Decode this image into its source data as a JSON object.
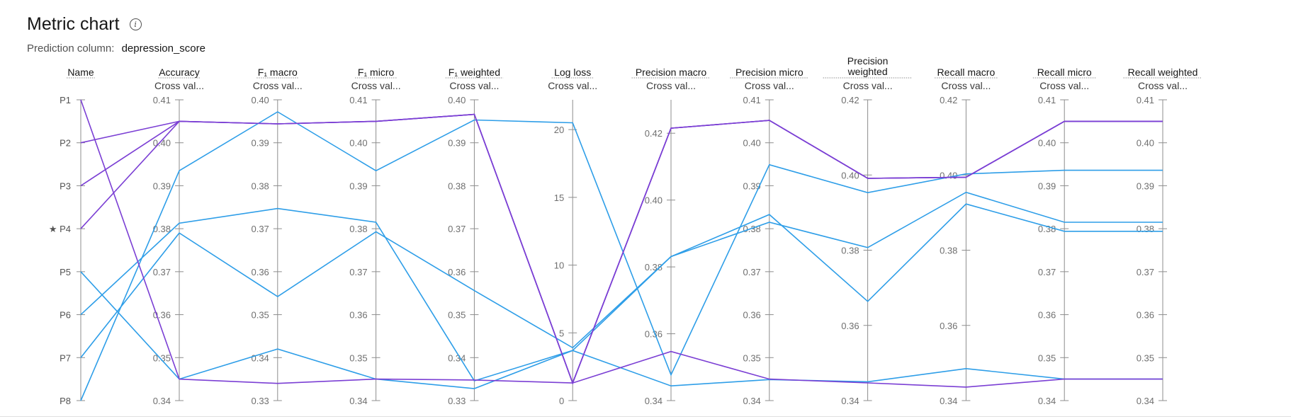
{
  "header": {
    "title": "Metric chart",
    "info_icon": "info-icon",
    "prediction_label": "Prediction column:",
    "prediction_value": "depression_score"
  },
  "colors": {
    "blue": "#2e9ee8",
    "purple": "#7b3fd4",
    "axis": "#8d8d8d",
    "label": "#525252"
  },
  "chart_data": {
    "type": "parallel_coordinates",
    "pipelines": [
      "P1",
      "P2",
      "P3",
      "P4",
      "P5",
      "P6",
      "P7",
      "P8"
    ],
    "starred": "P4",
    "name_axis_label": "Name",
    "axes": [
      {
        "key": "accuracy",
        "label": "Accuracy",
        "sub": "Cross val...",
        "min": 0.34,
        "max": 0.41,
        "ticks": [
          "0.41",
          "0.40",
          "0.39",
          "0.38",
          "0.37",
          "0.36",
          "0.35",
          "0.34"
        ]
      },
      {
        "key": "f1_macro",
        "label": "F₁ macro",
        "sub": "Cross val...",
        "min": 0.33,
        "max": 0.4,
        "ticks": [
          "0.40",
          "0.39",
          "0.38",
          "0.37",
          "0.36",
          "0.35",
          "0.34",
          "0.33"
        ]
      },
      {
        "key": "f1_micro",
        "label": "F₁ micro",
        "sub": "Cross val...",
        "min": 0.34,
        "max": 0.41,
        "ticks": [
          "0.41",
          "0.40",
          "0.39",
          "0.38",
          "0.37",
          "0.36",
          "0.35",
          "0.34"
        ]
      },
      {
        "key": "f1_weighted",
        "label": "F₁ weighted",
        "sub": "Cross val...",
        "min": 0.33,
        "max": 0.4,
        "ticks": [
          "0.40",
          "0.39",
          "0.38",
          "0.37",
          "0.36",
          "0.35",
          "0.34",
          "0.33"
        ]
      },
      {
        "key": "log_loss",
        "label": "Log loss",
        "sub": "Cross val...",
        "min": 0,
        "max": 22.2,
        "ticks": [
          "20",
          "15",
          "10",
          "5",
          "0"
        ]
      },
      {
        "key": "precision_macro",
        "label": "Precision macro",
        "sub": "Cross val...",
        "min": 0.34,
        "max": 0.43,
        "ticks": [
          "0.42",
          "0.40",
          "0.38",
          "0.36",
          "0.34"
        ]
      },
      {
        "key": "precision_micro",
        "label": "Precision micro",
        "sub": "Cross val...",
        "min": 0.34,
        "max": 0.41,
        "ticks": [
          "0.41",
          "0.40",
          "0.39",
          "0.38",
          "0.37",
          "0.36",
          "0.35",
          "0.34"
        ]
      },
      {
        "key": "precision_weighted",
        "label": "Precision weighted",
        "label_lines": [
          "Precision",
          "weighted"
        ],
        "sub": "Cross val...",
        "min": 0.34,
        "max": 0.42,
        "ticks": [
          "0.42",
          "0.40",
          "0.38",
          "0.36",
          "0.34"
        ]
      },
      {
        "key": "recall_macro",
        "label": "Recall macro",
        "sub": "Cross val...",
        "min": 0.34,
        "max": 0.42,
        "ticks": [
          "0.42",
          "0.40",
          "0.38",
          "0.36",
          "0.34"
        ]
      },
      {
        "key": "recall_micro",
        "label": "Recall micro",
        "sub": "Cross val...",
        "min": 0.34,
        "max": 0.41,
        "ticks": [
          "0.41",
          "0.40",
          "0.39",
          "0.38",
          "0.37",
          "0.36",
          "0.35",
          "0.34"
        ]
      },
      {
        "key": "recall_weighted",
        "label": "Recall weighted",
        "sub": "Cross val...",
        "min": 0.34,
        "max": 0.41,
        "ticks": [
          "0.41",
          "0.40",
          "0.39",
          "0.38",
          "0.37",
          "0.36",
          "0.35",
          "0.34"
        ]
      }
    ],
    "lines": [
      {
        "pipeline": "P1",
        "color": "purple",
        "values": [
          0.345,
          0.334,
          0.345,
          0.3348,
          1.3,
          0.3547,
          0.345,
          0.3447,
          0.3436,
          0.345,
          0.345
        ]
      },
      {
        "pipeline": "P2",
        "color": "purple",
        "values": [
          0.405,
          0.3944,
          0.405,
          0.3966,
          1.3,
          0.4215,
          0.4052,
          0.3991,
          0.3994,
          0.405,
          0.405
        ]
      },
      {
        "pipeline": "P3",
        "color": "purple",
        "values": [
          0.405,
          0.3944,
          0.405,
          0.3966,
          1.3,
          0.4215,
          0.4052,
          0.3991,
          0.3994,
          0.405,
          0.405
        ]
      },
      {
        "pipeline": "P4",
        "color": "purple",
        "values": [
          0.405,
          0.3944,
          0.405,
          0.3966,
          1.3,
          0.4215,
          0.4052,
          0.3991,
          0.3994,
          0.405,
          0.405
        ]
      },
      {
        "pipeline": "P5",
        "color": "blue",
        "values": [
          0.345,
          0.342,
          0.345,
          0.3328,
          3.7,
          0.3444,
          0.3449,
          0.345,
          0.3485,
          0.345,
          0.345
        ]
      },
      {
        "pipeline": "P6",
        "color": "blue",
        "values": [
          0.3813,
          0.3747,
          0.3815,
          0.3346,
          3.7,
          0.3831,
          0.3815,
          0.3807,
          0.3954,
          0.3815,
          0.3815
        ]
      },
      {
        "pipeline": "P7",
        "color": "blue",
        "values": [
          0.379,
          0.3542,
          0.3793,
          0.3556,
          3.9,
          0.3831,
          0.3833,
          0.3664,
          0.3923,
          0.3794,
          0.3794
        ]
      },
      {
        "pipeline": "P8",
        "color": "blue",
        "values": [
          0.3935,
          0.3972,
          0.3935,
          0.3953,
          20.5,
          0.3477,
          0.3949,
          0.3953,
          0.4003,
          0.3936,
          0.3936
        ]
      }
    ],
    "blue_lines_continuing_from_name": [
      {
        "pipeline": "P5",
        "color": "blue"
      },
      {
        "pipeline": "P6",
        "color": "blue"
      },
      {
        "pipeline": "P7",
        "color": "blue"
      },
      {
        "pipeline": "P8",
        "color": "blue"
      }
    ]
  }
}
